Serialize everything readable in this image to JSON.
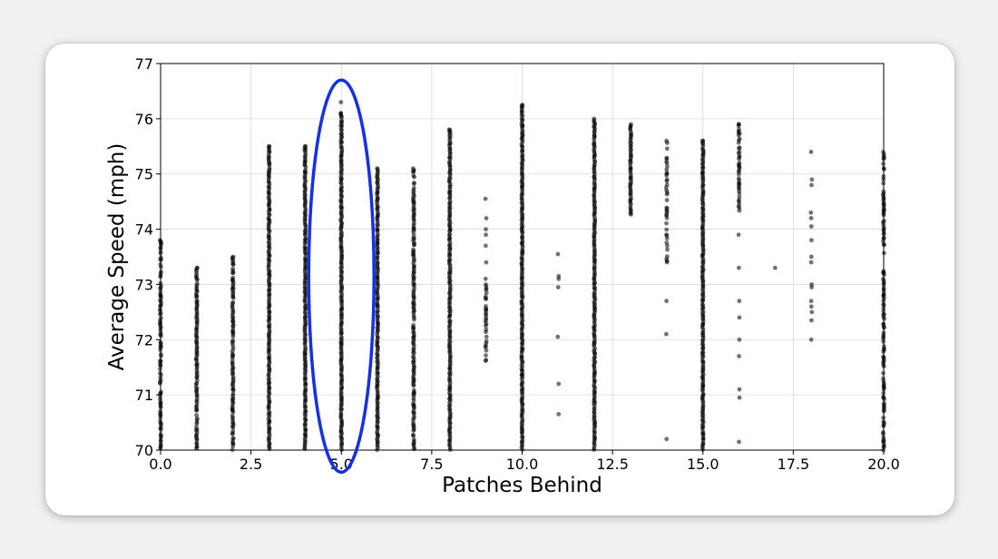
{
  "chart_data": {
    "type": "scatter",
    "title": "",
    "xlabel": "Patches Behind",
    "ylabel": "Average Speed (mph)",
    "xlim": [
      0,
      20
    ],
    "ylim": [
      70,
      77
    ],
    "xticks": [
      "0.0",
      "2.5",
      "5.0",
      "7.5",
      "10.0",
      "12.5",
      "15.0",
      "17.5",
      "20.0"
    ],
    "yticks": [
      "70",
      "71",
      "72",
      "73",
      "74",
      "75",
      "76",
      "77"
    ],
    "grid": true,
    "point_color": "#000000",
    "highlight_color": "#1530e6",
    "highlight": {
      "x": 5,
      "y_range": [
        69.6,
        76.7
      ]
    },
    "columns": [
      {
        "x": 0,
        "ranges": [
          [
            70.0,
            73.8
          ]
        ],
        "dense": 0.8,
        "sparse": []
      },
      {
        "x": 1,
        "ranges": [
          [
            70.0,
            73.3
          ]
        ],
        "dense": 0.9,
        "sparse": []
      },
      {
        "x": 2,
        "ranges": [
          [
            70.0,
            73.5
          ]
        ],
        "dense": 0.9,
        "sparse": []
      },
      {
        "x": 3,
        "ranges": [
          [
            70.0,
            75.5
          ]
        ],
        "dense": 1.0,
        "sparse": []
      },
      {
        "x": 4,
        "ranges": [
          [
            70.0,
            75.5
          ]
        ],
        "dense": 1.0,
        "sparse": []
      },
      {
        "x": 5,
        "ranges": [
          [
            70.0,
            76.1
          ]
        ],
        "dense": 1.0,
        "sparse": [
          76.3
        ]
      },
      {
        "x": 6,
        "ranges": [
          [
            70.0,
            75.1
          ]
        ],
        "dense": 1.0,
        "sparse": []
      },
      {
        "x": 7,
        "ranges": [
          [
            70.0,
            75.1
          ]
        ],
        "dense": 0.9,
        "sparse": []
      },
      {
        "x": 8,
        "ranges": [
          [
            70.0,
            75.8
          ]
        ],
        "dense": 1.0,
        "sparse": []
      },
      {
        "x": 9,
        "ranges": [
          [
            71.6,
            73.0
          ]
        ],
        "dense": 0.6,
        "sparse": [
          74.55,
          74.2,
          74.0,
          73.9,
          73.7,
          73.4,
          73.1
        ]
      },
      {
        "x": 10,
        "ranges": [
          [
            70.0,
            76.25
          ]
        ],
        "dense": 1.0,
        "sparse": []
      },
      {
        "x": 11,
        "ranges": [],
        "dense": 0,
        "sparse": [
          73.55,
          73.15,
          73.1,
          72.95,
          72.05,
          71.2,
          70.65
        ]
      },
      {
        "x": 12,
        "ranges": [
          [
            70.0,
            76.0
          ]
        ],
        "dense": 1.0,
        "sparse": []
      },
      {
        "x": 13,
        "ranges": [
          [
            74.25,
            75.9
          ]
        ],
        "dense": 1.0,
        "sparse": []
      },
      {
        "x": 14,
        "ranges": [
          [
            73.3,
            75.6
          ]
        ],
        "dense": 0.5,
        "sparse": [
          72.7,
          72.1,
          70.2
        ]
      },
      {
        "x": 15,
        "ranges": [
          [
            70.0,
            75.6
          ]
        ],
        "dense": 1.0,
        "sparse": []
      },
      {
        "x": 16,
        "ranges": [
          [
            74.3,
            75.9
          ]
        ],
        "dense": 0.8,
        "sparse": [
          73.9,
          73.3,
          72.7,
          72.4,
          72.0,
          71.7,
          71.1,
          70.95,
          70.15
        ]
      },
      {
        "x": 17,
        "ranges": [],
        "dense": 0,
        "sparse": [
          73.3
        ]
      },
      {
        "x": 18,
        "ranges": [],
        "dense": 0,
        "sparse": [
          75.4,
          74.9,
          74.8,
          74.3,
          74.2,
          74.05,
          73.8,
          73.5,
          73.4,
          73.0,
          72.95,
          72.7,
          72.6,
          72.5,
          72.35,
          72.0
        ]
      },
      {
        "x": 20,
        "ranges": [
          [
            70.0,
            75.4
          ]
        ],
        "dense": 0.6,
        "sparse": []
      }
    ]
  }
}
